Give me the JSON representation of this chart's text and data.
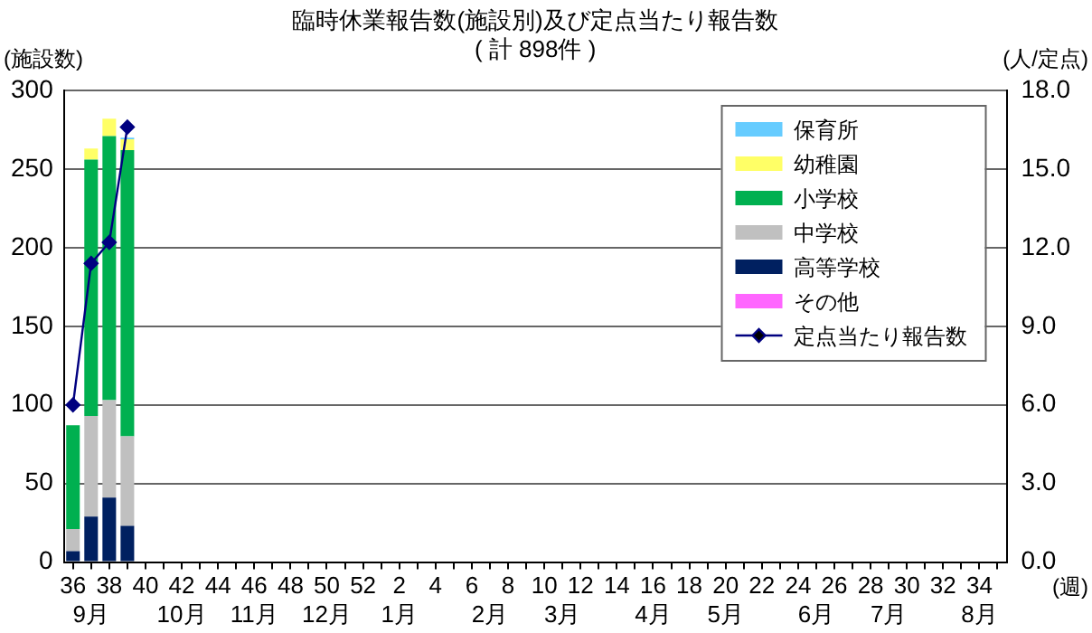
{
  "chart_data": {
    "type": "bar",
    "stacked": true,
    "title": "臨時休業報告数(施設別)及び定点当たり報告数",
    "subtitle": "( 計 898件 )",
    "ylabel": "(施設数)",
    "y2label": "(人/定点)",
    "xlabel": "(週)",
    "categories": [
      "36\n",
      "\n9月",
      "38\n",
      null,
      "40\n",
      null,
      "42\n10月",
      null,
      "44\n",
      null,
      "46\n11月",
      null,
      "48\n",
      null,
      "50\n12月",
      null,
      "52\n",
      null,
      "2\n1月",
      null,
      "4\n",
      null,
      "6\n",
      "\n2月",
      "8\n",
      null,
      "10\n",
      "\n3月",
      "12\n",
      null,
      "14\n",
      null,
      "16\n4月",
      null,
      "18\n",
      null,
      "20\n5月",
      null,
      "22\n",
      null,
      "24\n",
      "\n6月",
      "26\n",
      null,
      "28\n",
      "\n7月",
      "30\n",
      null,
      "32\n",
      null,
      "34\n8月",
      null
    ],
    "series": [
      {
        "name": "その他",
        "color": "#ff66ff",
        "values": [
          0,
          0,
          0,
          0,
          null,
          null,
          null,
          null,
          null,
          null,
          null,
          null,
          null,
          null,
          null,
          null,
          null,
          null,
          null,
          null,
          null,
          null,
          null,
          null,
          null,
          null,
          null,
          null,
          null,
          null,
          null,
          null,
          null,
          null,
          null,
          null,
          null,
          null,
          null,
          null,
          null,
          null,
          null,
          null,
          null,
          null,
          null,
          null,
          null,
          null,
          null,
          null
        ]
      },
      {
        "name": "高等学校",
        "color": "#002060",
        "values": [
          7,
          29,
          41,
          23,
          null,
          null,
          null,
          null,
          null,
          null,
          null,
          null,
          null,
          null,
          null,
          null,
          null,
          null,
          null,
          null,
          null,
          null,
          null,
          null,
          null,
          null,
          null,
          null,
          null,
          null,
          null,
          null,
          null,
          null,
          null,
          null,
          null,
          null,
          null,
          null,
          null,
          null,
          null,
          null,
          null,
          null,
          null,
          null,
          null,
          null,
          null,
          null
        ]
      },
      {
        "name": "中学校",
        "color": "#c0c0c0",
        "values": [
          14,
          64,
          62,
          57,
          null,
          null,
          null,
          null,
          null,
          null,
          null,
          null,
          null,
          null,
          null,
          null,
          null,
          null,
          null,
          null,
          null,
          null,
          null,
          null,
          null,
          null,
          null,
          null,
          null,
          null,
          null,
          null,
          null,
          null,
          null,
          null,
          null,
          null,
          null,
          null,
          null,
          null,
          null,
          null,
          null,
          null,
          null,
          null,
          null,
          null,
          null,
          null
        ]
      },
      {
        "name": "小学校",
        "color": "#00b050",
        "values": [
          66,
          163,
          168,
          182,
          null,
          null,
          null,
          null,
          null,
          null,
          null,
          null,
          null,
          null,
          null,
          null,
          null,
          null,
          null,
          null,
          null,
          null,
          null,
          null,
          null,
          null,
          null,
          null,
          null,
          null,
          null,
          null,
          null,
          null,
          null,
          null,
          null,
          null,
          null,
          null,
          null,
          null,
          null,
          null,
          null,
          null,
          null,
          null,
          null,
          null,
          null,
          null
        ]
      },
      {
        "name": "幼稚園",
        "color": "#ffff66",
        "values": [
          0,
          7,
          11,
          7,
          null,
          null,
          null,
          null,
          null,
          null,
          null,
          null,
          null,
          null,
          null,
          null,
          null,
          null,
          null,
          null,
          null,
          null,
          null,
          null,
          null,
          null,
          null,
          null,
          null,
          null,
          null,
          null,
          null,
          null,
          null,
          null,
          null,
          null,
          null,
          null,
          null,
          null,
          null,
          null,
          null,
          null,
          null,
          null,
          null,
          null,
          null,
          null
        ]
      },
      {
        "name": "保育所",
        "color": "#66ccff",
        "values": [
          0,
          0,
          0,
          1,
          null,
          null,
          null,
          null,
          null,
          null,
          null,
          null,
          null,
          null,
          null,
          null,
          null,
          null,
          null,
          null,
          null,
          null,
          null,
          null,
          null,
          null,
          null,
          null,
          null,
          null,
          null,
          null,
          null,
          null,
          null,
          null,
          null,
          null,
          null,
          null,
          null,
          null,
          null,
          null,
          null,
          null,
          null,
          null,
          null,
          null,
          null,
          null
        ]
      },
      {
        "name": "定点当たり報告数",
        "type": "line",
        "axis": "y2",
        "color": "#000080",
        "marker": "diamond",
        "values": [
          6.0,
          11.4,
          12.2,
          16.6,
          null,
          null,
          null,
          null,
          null,
          null,
          null,
          null,
          null,
          null,
          null,
          null,
          null,
          null,
          null,
          null,
          null,
          null,
          null,
          null,
          null,
          null,
          null,
          null,
          null,
          null,
          null,
          null,
          null,
          null,
          null,
          null,
          null,
          null,
          null,
          null,
          null,
          null,
          null,
          null,
          null,
          null,
          null,
          null,
          null,
          null,
          null,
          null
        ]
      }
    ],
    "ylim": [
      0,
      300
    ],
    "yticks": [
      0,
      50,
      100,
      150,
      200,
      250,
      300
    ],
    "y2lim": [
      0,
      18
    ],
    "y2ticks": [
      {
        "value": 0,
        "label": "0.0"
      },
      {
        "value": 3,
        "label": "3.0"
      },
      {
        "value": 6,
        "label": "6.0"
      },
      {
        "value": 9,
        "label": "9.0"
      },
      {
        "value": 12,
        "label": "12.0"
      },
      {
        "value": 15,
        "label": "15.0"
      },
      {
        "value": 18,
        "label": "18.0"
      }
    ],
    "grid": "y",
    "legend": "top right"
  }
}
